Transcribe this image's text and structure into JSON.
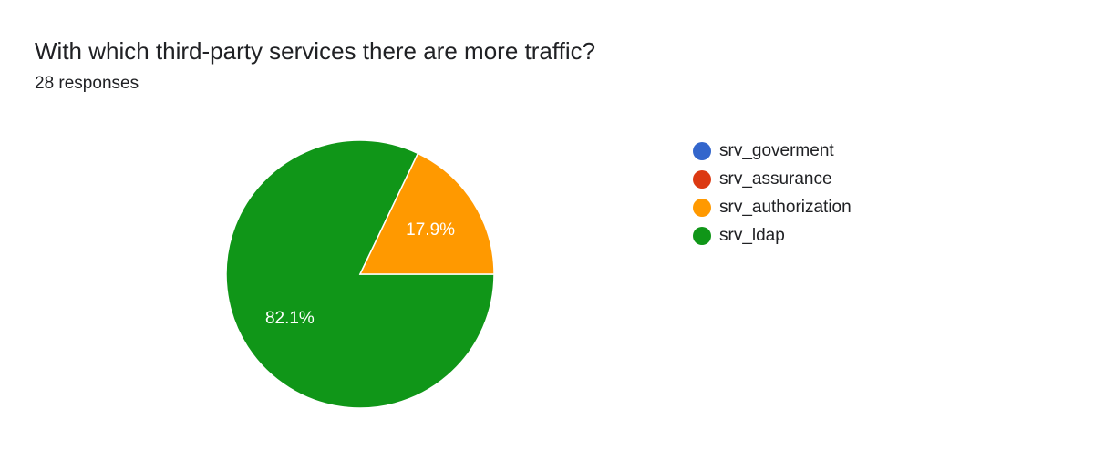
{
  "header": {
    "title": "With which third-party services there are more traffic?",
    "subtitle": "28 responses"
  },
  "chart_data": {
    "type": "pie",
    "categories": [
      "srv_goverment",
      "srv_assurance",
      "srv_authorization",
      "srv_ldap"
    ],
    "values": [
      0,
      0,
      17.9,
      82.1
    ],
    "value_unit": "percent",
    "data_labels": [
      "",
      "",
      "17.9%",
      "82.1%"
    ],
    "colors": [
      "#3366cc",
      "#dc3912",
      "#ff9900",
      "#109618"
    ],
    "legend_position": "right"
  },
  "legend": {
    "items": [
      {
        "label": "srv_goverment",
        "color": "#3366cc"
      },
      {
        "label": "srv_assurance",
        "color": "#dc3912"
      },
      {
        "label": "srv_authorization",
        "color": "#ff9900"
      },
      {
        "label": "srv_ldap",
        "color": "#109618"
      }
    ]
  }
}
